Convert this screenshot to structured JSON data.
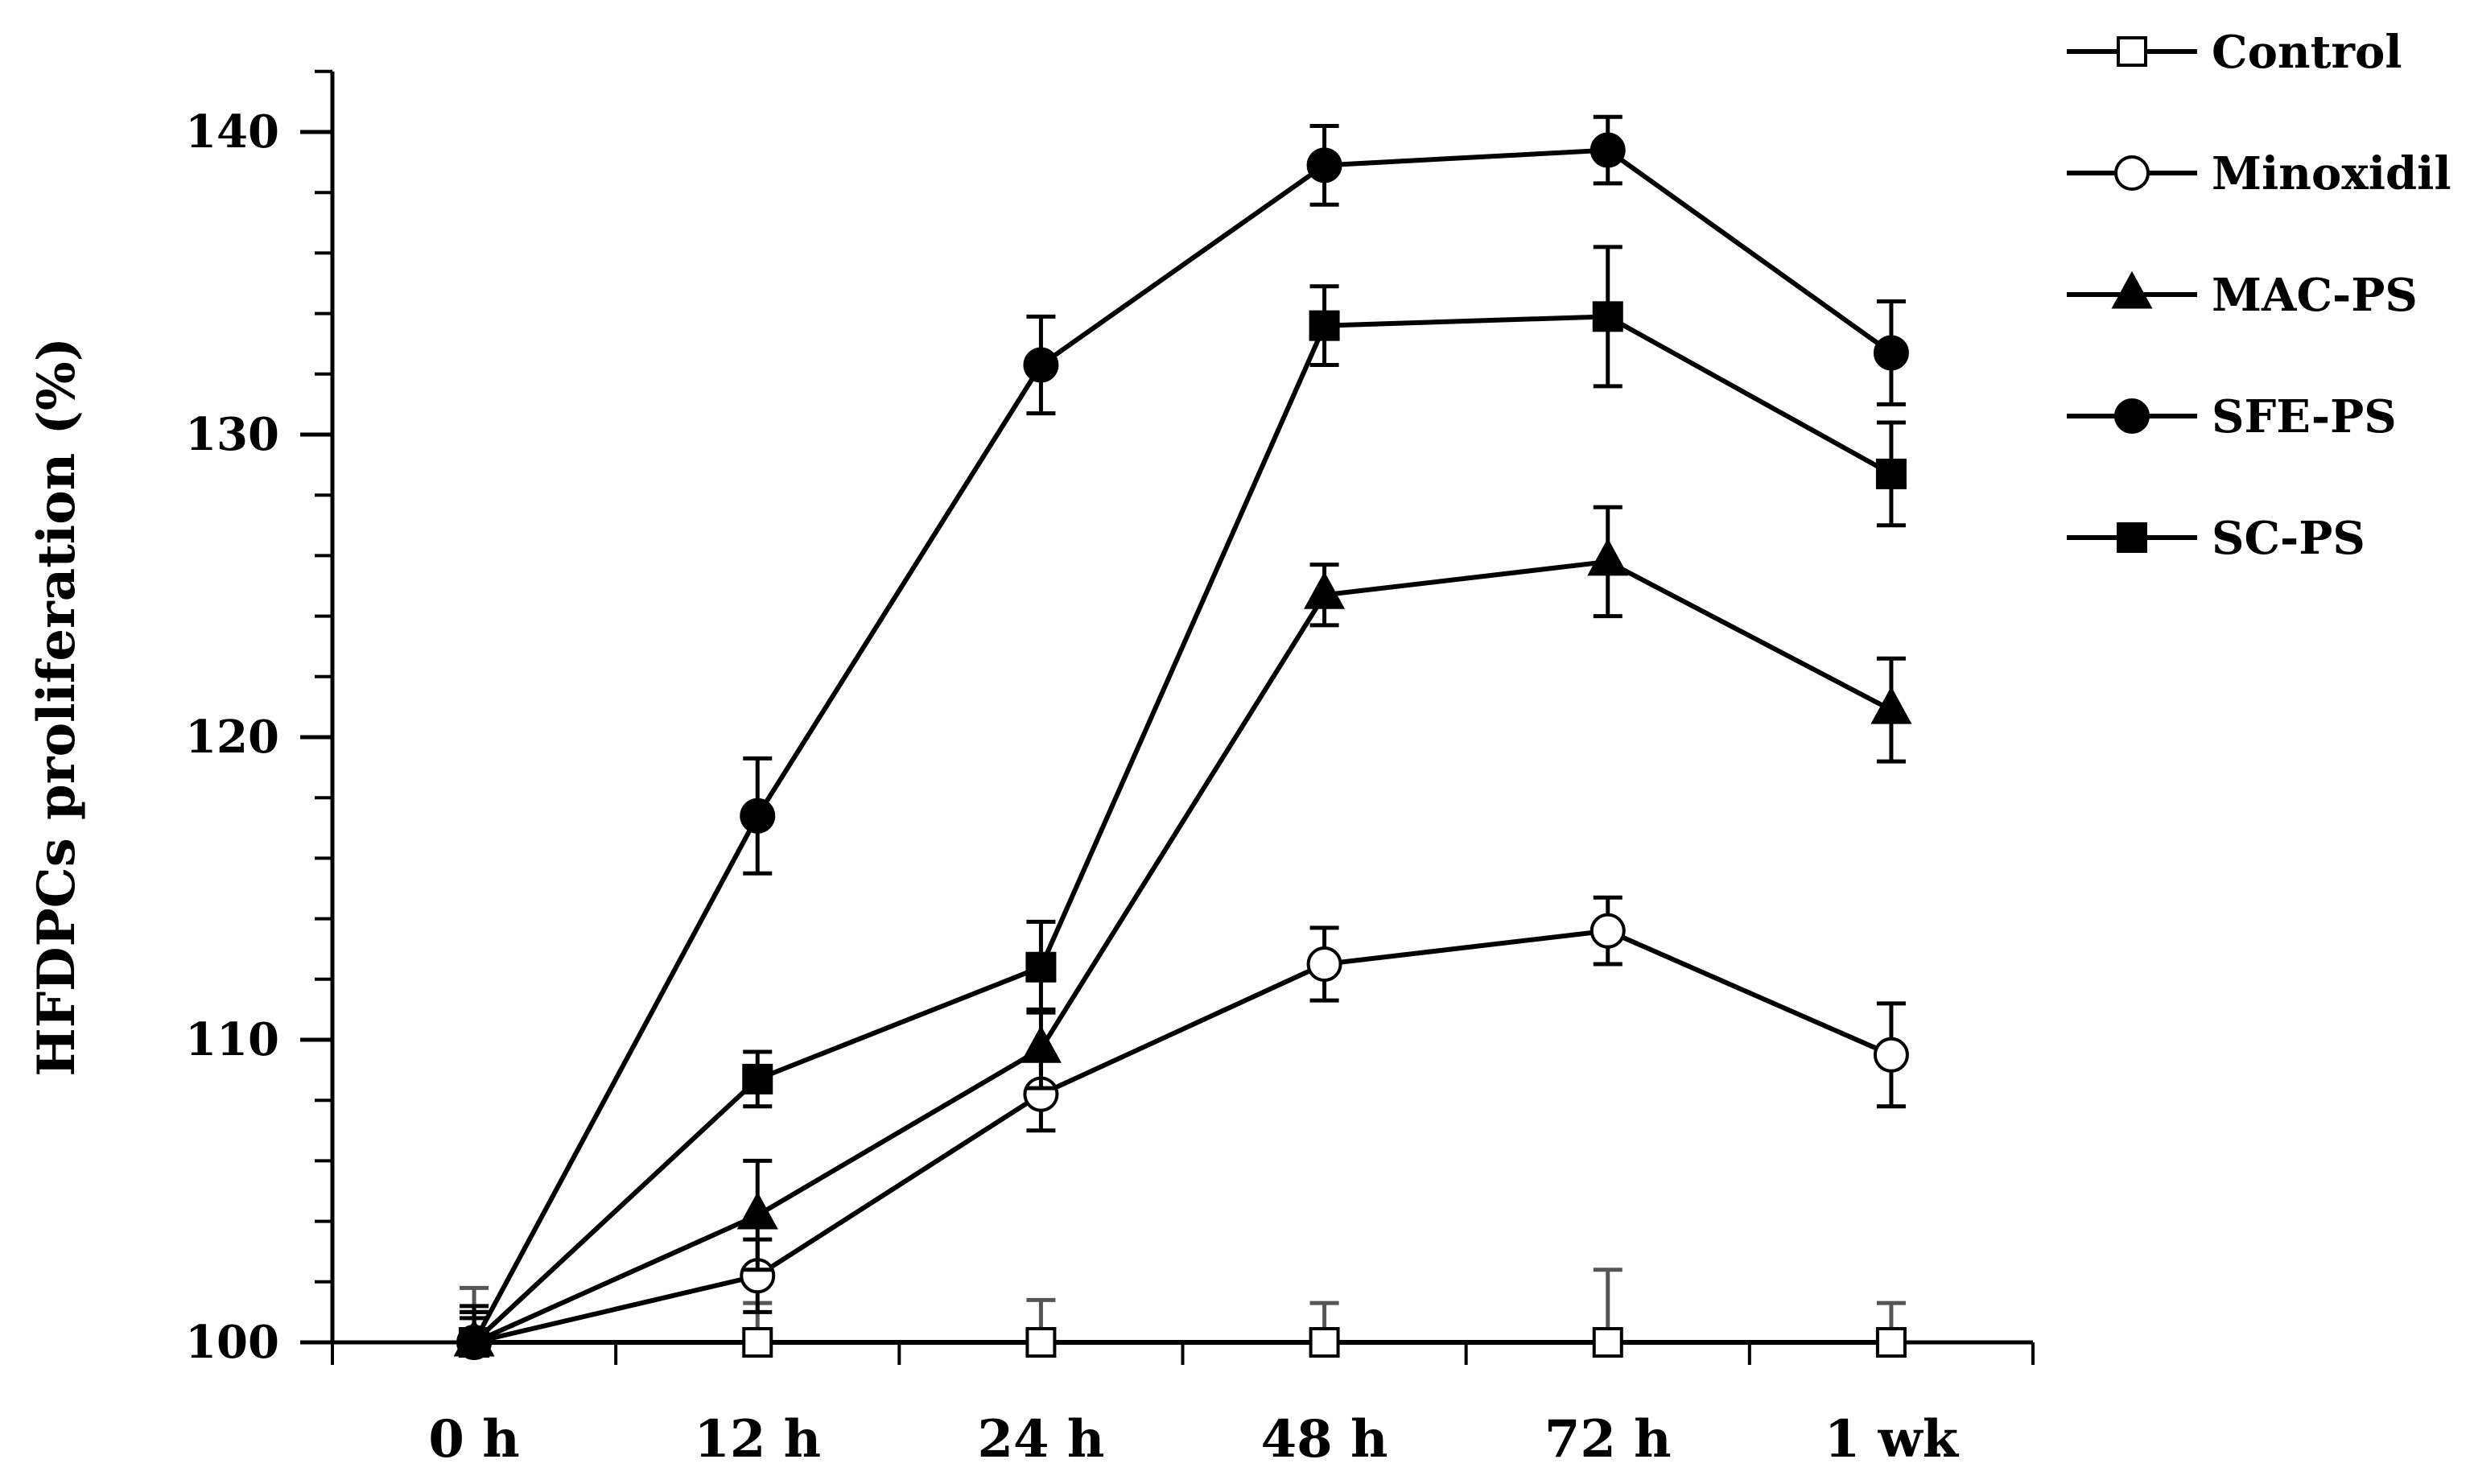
{
  "chart_data": {
    "type": "line",
    "title": "",
    "xlabel": "",
    "ylabel": "HFDPCs proliferation (%)",
    "categories": [
      "0 h",
      "12 h",
      "24 h",
      "48 h",
      "72 h",
      "1 wk"
    ],
    "ylim": [
      100,
      142
    ],
    "yticks": [
      100,
      110,
      120,
      130,
      140
    ],
    "y_minor_step": 2,
    "grid": false,
    "legend_position": "top-right",
    "series": [
      {
        "name": "Control",
        "marker": "square-open",
        "values": [
          100,
          100,
          100,
          100,
          100,
          100
        ],
        "errors": [
          1.8,
          1.3,
          1.4,
          1.3,
          2.4,
          1.3
        ]
      },
      {
        "name": "Minoxidil",
        "marker": "circle-open",
        "values": [
          100,
          102.2,
          108.2,
          112.5,
          113.6,
          109.5
        ],
        "errors": [
          1.2,
          1.2,
          1.2,
          1.2,
          1.1,
          1.7
        ]
      },
      {
        "name": "MAC-PS",
        "marker": "triangle-filled",
        "values": [
          100,
          104.2,
          109.7,
          124.7,
          125.8,
          120.9
        ],
        "errors": [
          1.0,
          1.8,
          1.3,
          1.0,
          1.8,
          1.7
        ]
      },
      {
        "name": "SFE-PS",
        "marker": "circle-filled",
        "values": [
          100,
          117.4,
          132.3,
          138.9,
          139.4,
          132.7
        ],
        "errors": [
          1.0,
          1.9,
          1.6,
          1.3,
          1.1,
          1.7
        ]
      },
      {
        "name": "SC-PS",
        "marker": "square-filled",
        "values": [
          100,
          108.7,
          112.4,
          133.6,
          133.9,
          128.7
        ],
        "errors": [
          0.8,
          0.9,
          1.5,
          1.3,
          2.3,
          1.7
        ]
      }
    ]
  }
}
